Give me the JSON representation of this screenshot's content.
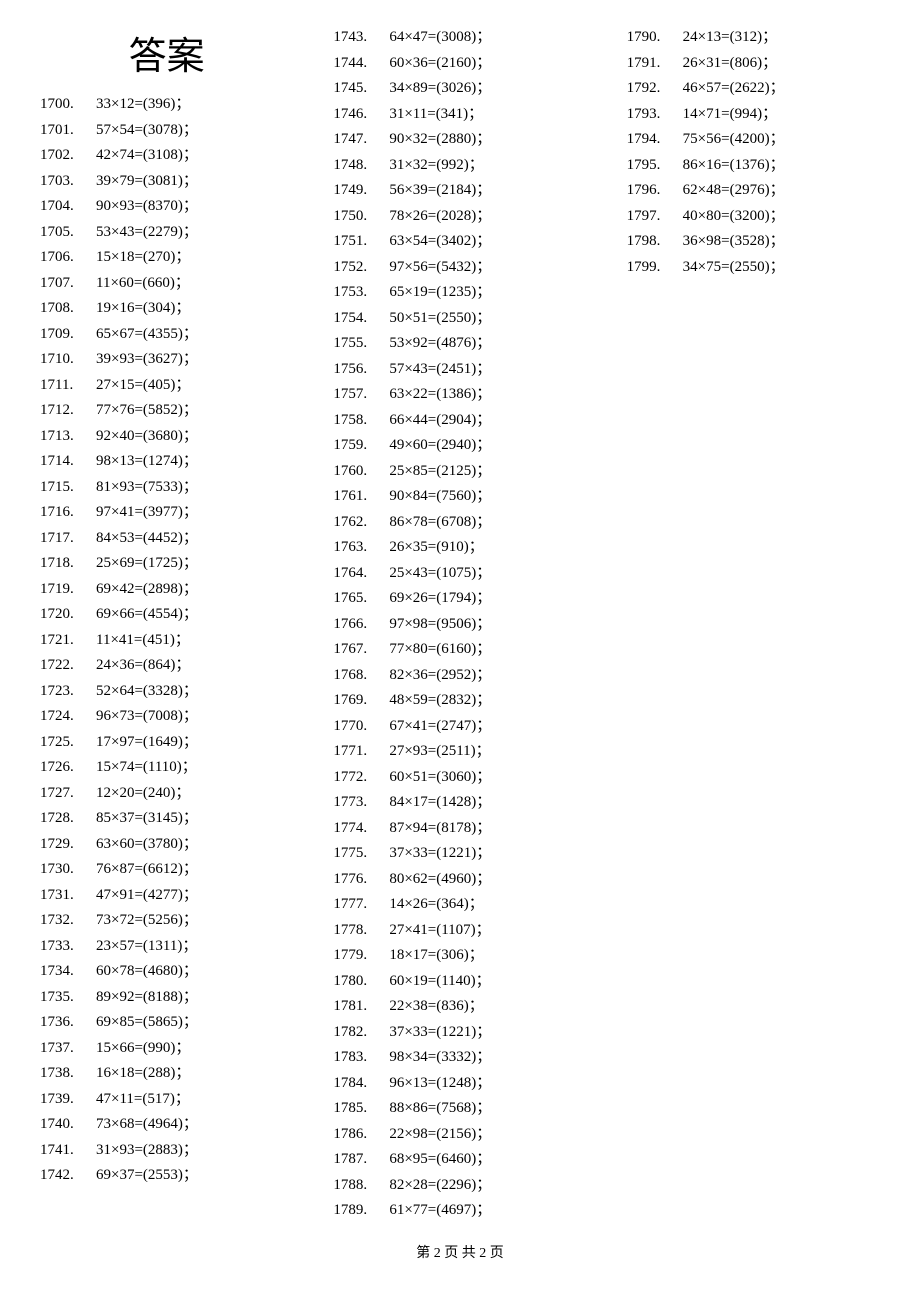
{
  "heading": "答案",
  "footer": "第 2 页 共 2 页",
  "item_fontsize": 15,
  "heading_fontsize": 38,
  "text_color": "#000000",
  "background_color": "#ffffff",
  "col1": [
    {
      "n": "1700.",
      "e": "33×12=(396)；"
    },
    {
      "n": "1701.",
      "e": "57×54=(3078)；"
    },
    {
      "n": "1702.",
      "e": "42×74=(3108)；"
    },
    {
      "n": "1703.",
      "e": "39×79=(3081)；"
    },
    {
      "n": "1704.",
      "e": "90×93=(8370)；"
    },
    {
      "n": "1705.",
      "e": "53×43=(2279)；"
    },
    {
      "n": "1706.",
      "e": "15×18=(270)；"
    },
    {
      "n": "1707.",
      "e": "11×60=(660)；"
    },
    {
      "n": "1708.",
      "e": "19×16=(304)；"
    },
    {
      "n": "1709.",
      "e": "65×67=(4355)；"
    },
    {
      "n": "1710.",
      "e": "39×93=(3627)；"
    },
    {
      "n": "1711.",
      "e": "27×15=(405)；"
    },
    {
      "n": "1712.",
      "e": "77×76=(5852)；"
    },
    {
      "n": "1713.",
      "e": "92×40=(3680)；"
    },
    {
      "n": "1714.",
      "e": "98×13=(1274)；"
    },
    {
      "n": "1715.",
      "e": "81×93=(7533)；"
    },
    {
      "n": "1716.",
      "e": "97×41=(3977)；"
    },
    {
      "n": "1717.",
      "e": "84×53=(4452)；"
    },
    {
      "n": "1718.",
      "e": "25×69=(1725)；"
    },
    {
      "n": "1719.",
      "e": "69×42=(2898)；"
    },
    {
      "n": "1720.",
      "e": "69×66=(4554)；"
    },
    {
      "n": "1721.",
      "e": "11×41=(451)；"
    },
    {
      "n": "1722.",
      "e": "24×36=(864)；"
    },
    {
      "n": "1723.",
      "e": "52×64=(3328)；"
    },
    {
      "n": "1724.",
      "e": "96×73=(7008)；"
    },
    {
      "n": "1725.",
      "e": "17×97=(1649)；"
    },
    {
      "n": "1726.",
      "e": "15×74=(1110)；"
    },
    {
      "n": "1727.",
      "e": "12×20=(240)；"
    },
    {
      "n": "1728.",
      "e": "85×37=(3145)；"
    },
    {
      "n": "1729.",
      "e": "63×60=(3780)；"
    },
    {
      "n": "1730.",
      "e": "76×87=(6612)；"
    },
    {
      "n": "1731.",
      "e": "47×91=(4277)；"
    },
    {
      "n": "1732.",
      "e": "73×72=(5256)；"
    },
    {
      "n": "1733.",
      "e": "23×57=(1311)；"
    },
    {
      "n": "1734.",
      "e": "60×78=(4680)；"
    },
    {
      "n": "1735.",
      "e": "89×92=(8188)；"
    },
    {
      "n": "1736.",
      "e": "69×85=(5865)；"
    },
    {
      "n": "1737.",
      "e": "15×66=(990)；"
    },
    {
      "n": "1738.",
      "e": "16×18=(288)；"
    },
    {
      "n": "1739.",
      "e": "47×11=(517)；"
    },
    {
      "n": "1740.",
      "e": "73×68=(4964)；"
    },
    {
      "n": "1741.",
      "e": "31×93=(2883)；"
    },
    {
      "n": "1742.",
      "e": "69×37=(2553)；"
    }
  ],
  "col2": [
    {
      "n": "1743.",
      "e": "64×47=(3008)；"
    },
    {
      "n": "1744.",
      "e": "60×36=(2160)；"
    },
    {
      "n": "1745.",
      "e": "34×89=(3026)；"
    },
    {
      "n": "1746.",
      "e": "31×11=(341)；"
    },
    {
      "n": "1747.",
      "e": "90×32=(2880)；"
    },
    {
      "n": "1748.",
      "e": "31×32=(992)；"
    },
    {
      "n": "1749.",
      "e": "56×39=(2184)；"
    },
    {
      "n": "1750.",
      "e": "78×26=(2028)；"
    },
    {
      "n": "1751.",
      "e": "63×54=(3402)；"
    },
    {
      "n": "1752.",
      "e": "97×56=(5432)；"
    },
    {
      "n": "1753.",
      "e": "65×19=(1235)；"
    },
    {
      "n": "1754.",
      "e": "50×51=(2550)；"
    },
    {
      "n": "1755.",
      "e": "53×92=(4876)；"
    },
    {
      "n": "1756.",
      "e": "57×43=(2451)；"
    },
    {
      "n": "1757.",
      "e": "63×22=(1386)；"
    },
    {
      "n": "1758.",
      "e": "66×44=(2904)；"
    },
    {
      "n": "1759.",
      "e": "49×60=(2940)；"
    },
    {
      "n": "1760.",
      "e": "25×85=(2125)；"
    },
    {
      "n": "1761.",
      "e": "90×84=(7560)；"
    },
    {
      "n": "1762.",
      "e": "86×78=(6708)；"
    },
    {
      "n": "1763.",
      "e": "26×35=(910)；"
    },
    {
      "n": "1764.",
      "e": "25×43=(1075)；"
    },
    {
      "n": "1765.",
      "e": "69×26=(1794)；"
    },
    {
      "n": "1766.",
      "e": "97×98=(9506)；"
    },
    {
      "n": "1767.",
      "e": "77×80=(6160)；"
    },
    {
      "n": "1768.",
      "e": "82×36=(2952)；"
    },
    {
      "n": "1769.",
      "e": "48×59=(2832)；"
    },
    {
      "n": "1770.",
      "e": "67×41=(2747)；"
    },
    {
      "n": "1771.",
      "e": "27×93=(2511)；"
    },
    {
      "n": "1772.",
      "e": "60×51=(3060)；"
    },
    {
      "n": "1773.",
      "e": "84×17=(1428)；"
    },
    {
      "n": "1774.",
      "e": "87×94=(8178)；"
    },
    {
      "n": "1775.",
      "e": "37×33=(1221)；"
    },
    {
      "n": "1776.",
      "e": "80×62=(4960)；"
    },
    {
      "n": "1777.",
      "e": "14×26=(364)；"
    },
    {
      "n": "1778.",
      "e": "27×41=(1107)；"
    },
    {
      "n": "1779.",
      "e": "18×17=(306)；"
    },
    {
      "n": "1780.",
      "e": "60×19=(1140)；"
    },
    {
      "n": "1781.",
      "e": "22×38=(836)；"
    },
    {
      "n": "1782.",
      "e": "37×33=(1221)；"
    },
    {
      "n": "1783.",
      "e": "98×34=(3332)；"
    },
    {
      "n": "1784.",
      "e": "96×13=(1248)；"
    },
    {
      "n": "1785.",
      "e": "88×86=(7568)；"
    },
    {
      "n": "1786.",
      "e": "22×98=(2156)；"
    },
    {
      "n": "1787.",
      "e": "68×95=(6460)；"
    },
    {
      "n": "1788.",
      "e": "82×28=(2296)；"
    },
    {
      "n": "1789.",
      "e": "61×77=(4697)；"
    }
  ],
  "col3": [
    {
      "n": "1790.",
      "e": "24×13=(312)；"
    },
    {
      "n": "1791.",
      "e": "26×31=(806)；"
    },
    {
      "n": "1792.",
      "e": "46×57=(2622)；"
    },
    {
      "n": "1793.",
      "e": "14×71=(994)；"
    },
    {
      "n": "1794.",
      "e": "75×56=(4200)；"
    },
    {
      "n": "1795.",
      "e": "86×16=(1376)；"
    },
    {
      "n": "1796.",
      "e": "62×48=(2976)；"
    },
    {
      "n": "1797.",
      "e": "40×80=(3200)；"
    },
    {
      "n": "1798.",
      "e": "36×98=(3528)；"
    },
    {
      "n": "1799.",
      "e": "34×75=(2550)；"
    }
  ]
}
